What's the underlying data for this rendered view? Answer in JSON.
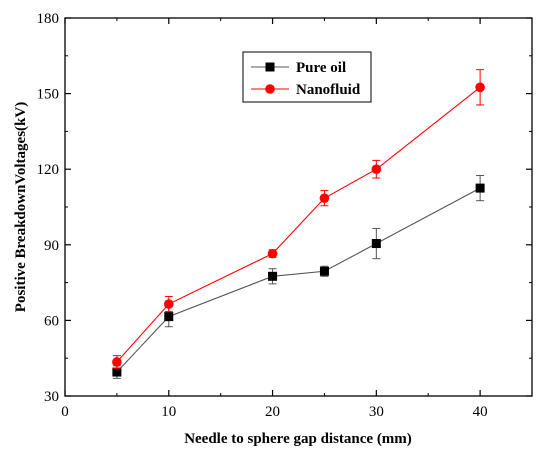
{
  "chart_data": {
    "type": "line",
    "title": "",
    "xlabel": "Needle to sphere gap distance (mm)",
    "ylabel": "Positive BreakdownVoltages(kV)",
    "xlim": [
      0,
      45
    ],
    "ylim": [
      30,
      180
    ],
    "x_ticks": [
      0,
      10,
      20,
      30,
      40
    ],
    "y_ticks": [
      30,
      60,
      90,
      120,
      150,
      180
    ],
    "grid": false,
    "legend_position": "top-center",
    "x": [
      5,
      10,
      20,
      25,
      30,
      40
    ],
    "series": [
      {
        "name": "Pure oil",
        "values": [
          39.5,
          61.5,
          77.5,
          79.5,
          90.5,
          112.5
        ],
        "error": [
          2.5,
          4,
          3,
          2,
          6,
          5
        ],
        "color": "#000000",
        "line_color": "#555555",
        "marker": "square"
      },
      {
        "name": "Nanofluid",
        "values": [
          43.5,
          66.5,
          86.5,
          108.5,
          120,
          152.5
        ],
        "error": [
          2.5,
          3,
          1.5,
          3,
          3.5,
          7
        ],
        "color": "#ff0000",
        "line_color": "#ff0000",
        "marker": "circle"
      }
    ]
  }
}
